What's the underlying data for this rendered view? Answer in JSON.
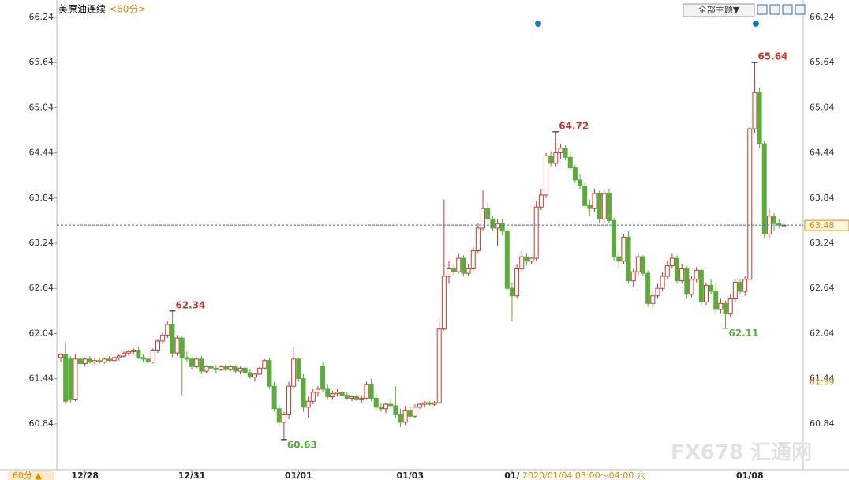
{
  "chart_data": {
    "type": "candlestick",
    "title": "美原油连续",
    "period": "<60分>",
    "button": "全部主题▼",
    "period_tab": "60分 ▲",
    "watermark": "FX678 汇通网",
    "crosshair_label": "2020/01/04 03:00～04:00 六",
    "ylim": [
      60.23,
      66.47
    ],
    "yticks": [
      66.24,
      65.64,
      65.04,
      64.44,
      63.84,
      63.24,
      62.64,
      62.04,
      61.44,
      60.84
    ],
    "up_color": "#c8382c",
    "down_color": "#5aad3a",
    "last": 63.48,
    "marker": 61.39,
    "annotations": [
      65.64,
      64.72,
      62.34,
      62.11,
      60.63
    ],
    "categories": [
      null,
      null,
      null,
      null,
      null,
      "12/28",
      null,
      null,
      null,
      null,
      null,
      null,
      null,
      null,
      null,
      null,
      null,
      null,
      null,
      null,
      null,
      null,
      null,
      null,
      null,
      null,
      null,
      "12/31",
      null,
      null,
      null,
      null,
      null,
      null,
      null,
      null,
      null,
      null,
      null,
      null,
      null,
      null,
      null,
      null,
      null,
      null,
      null,
      null,
      null,
      "01/01",
      null,
      null,
      null,
      null,
      null,
      null,
      null,
      null,
      null,
      null,
      null,
      null,
      null,
      null,
      null,
      null,
      null,
      null,
      null,
      null,
      null,
      null,
      "01/03",
      null,
      null,
      null,
      null,
      null,
      null,
      null,
      null,
      null,
      null,
      null,
      null,
      null,
      null,
      null,
      null,
      null,
      null,
      null,
      null,
      "01/",
      null,
      null,
      null,
      null,
      null,
      null,
      null,
      null,
      null,
      null,
      null,
      null,
      null,
      null,
      null,
      null,
      null,
      null,
      null,
      null,
      null,
      null,
      null,
      null,
      null,
      null,
      null,
      null,
      null,
      null,
      null,
      null,
      null,
      null,
      null,
      null,
      null,
      null,
      null,
      null,
      null,
      null,
      null,
      null,
      null,
      null,
      null,
      null,
      "01/08",
      null,
      null,
      null,
      null,
      null,
      null,
      null,
      null,
      null,
      null
    ],
    "candles": [
      [
        61.72,
        61.78,
        61.66,
        61.76
      ],
      [
        61.76,
        61.92,
        61.1,
        61.14
      ],
      [
        61.7,
        61.74,
        61.12,
        61.16
      ],
      [
        61.16,
        61.76,
        61.14,
        61.7
      ],
      [
        61.7,
        61.74,
        61.6,
        61.64
      ],
      [
        61.64,
        61.72,
        61.6,
        61.7
      ],
      [
        61.7,
        61.74,
        61.64,
        61.66
      ],
      [
        61.66,
        61.72,
        61.62,
        61.68
      ],
      [
        61.68,
        61.72,
        61.64,
        61.66
      ],
      [
        61.66,
        61.72,
        61.64,
        61.7
      ],
      [
        61.7,
        61.74,
        61.66,
        61.68
      ],
      [
        61.68,
        61.74,
        61.66,
        61.72
      ],
      [
        61.72,
        61.76,
        61.68,
        61.74
      ],
      [
        61.74,
        61.8,
        61.72,
        61.78
      ],
      [
        61.78,
        61.82,
        61.74,
        61.8
      ],
      [
        61.8,
        61.84,
        61.76,
        61.82
      ],
      [
        61.82,
        61.86,
        61.7,
        61.72
      ],
      [
        61.72,
        61.76,
        61.66,
        61.7
      ],
      [
        61.7,
        61.74,
        61.64,
        61.66
      ],
      [
        61.66,
        61.84,
        61.64,
        61.82
      ],
      [
        61.82,
        61.96,
        61.78,
        61.94
      ],
      [
        61.94,
        62.06,
        61.9,
        62.02
      ],
      [
        62.02,
        62.2,
        61.98,
        62.16
      ],
      [
        62.16,
        62.34,
        61.72,
        61.78
      ],
      [
        61.78,
        62.02,
        61.74,
        61.98
      ],
      [
        61.98,
        62.0,
        61.22,
        61.72
      ],
      [
        61.72,
        61.8,
        61.66,
        61.7
      ],
      [
        61.7,
        61.72,
        61.56,
        61.6
      ],
      [
        61.6,
        61.72,
        61.58,
        61.7
      ],
      [
        61.7,
        61.74,
        61.5,
        61.54
      ],
      [
        61.54,
        61.62,
        61.52,
        61.6
      ],
      [
        61.6,
        61.64,
        61.54,
        61.58
      ],
      [
        61.58,
        61.62,
        61.52,
        61.56
      ],
      [
        61.56,
        61.62,
        61.54,
        61.6
      ],
      [
        61.6,
        61.64,
        61.54,
        61.56
      ],
      [
        61.56,
        61.62,
        61.54,
        61.6
      ],
      [
        61.6,
        61.62,
        61.52,
        61.54
      ],
      [
        61.54,
        61.6,
        61.5,
        61.58
      ],
      [
        61.58,
        61.6,
        61.5,
        61.52
      ],
      [
        61.52,
        61.56,
        61.44,
        61.46
      ],
      [
        61.46,
        61.52,
        61.4,
        61.5
      ],
      [
        61.5,
        61.6,
        61.48,
        61.58
      ],
      [
        61.58,
        61.7,
        61.56,
        61.68
      ],
      [
        61.68,
        61.72,
        61.3,
        61.34
      ],
      [
        61.34,
        61.4,
        61.0,
        61.04
      ],
      [
        61.04,
        61.1,
        60.8,
        60.86
      ],
      [
        60.86,
        61.0,
        60.63,
        60.96
      ],
      [
        60.96,
        61.4,
        60.9,
        61.34
      ],
      [
        61.34,
        61.86,
        61.3,
        61.7
      ],
      [
        61.7,
        61.72,
        61.4,
        61.44
      ],
      [
        61.44,
        61.5,
        61.0,
        61.06
      ],
      [
        61.06,
        61.2,
        60.92,
        61.14
      ],
      [
        61.14,
        61.3,
        61.1,
        61.26
      ],
      [
        61.26,
        61.34,
        61.2,
        61.3
      ],
      [
        61.6,
        61.66,
        61.26,
        61.3
      ],
      [
        61.3,
        61.36,
        61.16,
        61.2
      ],
      [
        61.2,
        61.28,
        61.16,
        61.24
      ],
      [
        61.24,
        61.3,
        61.2,
        61.26
      ],
      [
        61.26,
        61.28,
        61.2,
        61.22
      ],
      [
        61.22,
        61.26,
        61.16,
        61.18
      ],
      [
        61.18,
        61.22,
        61.14,
        61.2
      ],
      [
        61.2,
        61.24,
        61.14,
        61.16
      ],
      [
        61.16,
        61.22,
        61.12,
        61.18
      ],
      [
        61.18,
        61.4,
        61.16,
        61.36
      ],
      [
        61.36,
        61.44,
        61.14,
        61.18
      ],
      [
        61.18,
        61.24,
        61.02,
        61.06
      ],
      [
        61.06,
        61.12,
        61.0,
        61.04
      ],
      [
        61.04,
        61.12,
        60.98,
        61.1
      ],
      [
        61.1,
        61.16,
        61.04,
        61.08
      ],
      [
        61.08,
        61.34,
        60.92,
        60.96
      ],
      [
        60.96,
        61.04,
        60.8,
        60.86
      ],
      [
        60.86,
        61.08,
        60.82,
        61.02
      ],
      [
        61.02,
        61.06,
        60.9,
        60.94
      ],
      [
        60.94,
        61.1,
        60.92,
        61.06
      ],
      [
        61.06,
        61.12,
        61.04,
        61.1
      ],
      [
        61.1,
        61.14,
        61.06,
        61.12
      ],
      [
        61.12,
        61.14,
        61.08,
        61.1
      ],
      [
        61.1,
        61.14,
        61.08,
        61.12
      ],
      [
        61.12,
        62.2,
        61.1,
        62.1
      ],
      [
        62.1,
        63.82,
        62.08,
        62.8
      ],
      [
        62.8,
        63.0,
        62.7,
        62.9
      ],
      [
        62.9,
        62.96,
        62.8,
        62.86
      ],
      [
        62.86,
        63.1,
        62.84,
        63.04
      ],
      [
        63.04,
        63.08,
        62.8,
        62.84
      ],
      [
        62.84,
        62.96,
        62.8,
        62.9
      ],
      [
        62.9,
        63.2,
        62.86,
        63.14
      ],
      [
        63.14,
        63.5,
        63.1,
        63.44
      ],
      [
        63.44,
        63.94,
        63.4,
        63.7
      ],
      [
        63.7,
        63.78,
        63.52,
        63.56
      ],
      [
        63.56,
        63.6,
        63.4,
        63.44
      ],
      [
        63.44,
        63.56,
        63.2,
        63.5
      ],
      [
        63.5,
        63.56,
        63.34,
        63.4
      ],
      [
        63.4,
        63.44,
        62.6,
        62.64
      ],
      [
        62.64,
        62.72,
        62.2,
        62.54
      ],
      [
        62.54,
        62.96,
        62.5,
        62.9
      ],
      [
        62.9,
        63.14,
        62.86,
        63.06
      ],
      [
        63.06,
        63.1,
        62.94,
        63.0
      ],
      [
        63.0,
        63.06,
        62.96,
        63.04
      ],
      [
        63.04,
        63.8,
        63.0,
        63.72
      ],
      [
        63.72,
        63.96,
        63.68,
        63.88
      ],
      [
        63.88,
        64.44,
        63.84,
        64.4
      ],
      [
        64.4,
        64.46,
        64.26,
        64.3
      ],
      [
        64.3,
        64.72,
        64.26,
        64.44
      ],
      [
        64.44,
        64.56,
        64.36,
        64.5
      ],
      [
        64.5,
        64.54,
        64.34,
        64.38
      ],
      [
        64.38,
        64.46,
        64.2,
        64.24
      ],
      [
        64.24,
        64.28,
        64.04,
        64.08
      ],
      [
        64.08,
        64.16,
        63.96,
        64.0
      ],
      [
        64.0,
        64.04,
        63.7,
        63.74
      ],
      [
        63.74,
        63.82,
        63.6,
        63.7
      ],
      [
        63.7,
        63.96,
        63.66,
        63.9
      ],
      [
        63.9,
        63.94,
        63.5,
        63.56
      ],
      [
        63.56,
        63.94,
        63.5,
        63.9
      ],
      [
        63.9,
        63.96,
        63.5,
        63.54
      ],
      [
        63.54,
        63.58,
        63.0,
        63.06
      ],
      [
        63.06,
        63.14,
        62.9,
        63.0
      ],
      [
        63.0,
        63.36,
        62.96,
        63.32
      ],
      [
        63.32,
        63.4,
        62.7,
        62.74
      ],
      [
        62.74,
        62.9,
        62.66,
        62.86
      ],
      [
        62.86,
        63.1,
        62.8,
        63.06
      ],
      [
        63.06,
        63.08,
        62.8,
        62.84
      ],
      [
        62.84,
        62.88,
        62.4,
        62.44
      ],
      [
        62.44,
        62.6,
        62.36,
        62.54
      ],
      [
        62.54,
        62.7,
        62.5,
        62.64
      ],
      [
        62.64,
        62.86,
        62.6,
        62.8
      ],
      [
        62.8,
        63.0,
        62.76,
        62.94
      ],
      [
        62.94,
        63.1,
        62.9,
        63.04
      ],
      [
        63.04,
        63.08,
        62.7,
        62.74
      ],
      [
        62.74,
        62.96,
        62.7,
        62.9
      ],
      [
        62.9,
        62.94,
        62.5,
        62.56
      ],
      [
        62.56,
        62.8,
        62.52,
        62.76
      ],
      [
        62.76,
        62.92,
        62.72,
        62.88
      ],
      [
        62.88,
        62.9,
        62.4,
        62.46
      ],
      [
        62.46,
        62.72,
        62.42,
        62.68
      ],
      [
        62.68,
        62.76,
        62.56,
        62.6
      ],
      [
        62.6,
        62.7,
        62.3,
        62.36
      ],
      [
        62.36,
        62.5,
        62.3,
        62.44
      ],
      [
        62.44,
        62.48,
        62.11,
        62.3
      ],
      [
        62.3,
        62.56,
        62.26,
        62.5
      ],
      [
        62.5,
        62.76,
        62.46,
        62.72
      ],
      [
        62.72,
        62.76,
        62.56,
        62.6
      ],
      [
        62.6,
        62.8,
        62.54,
        62.76
      ],
      [
        62.76,
        64.8,
        62.74,
        64.76
      ],
      [
        64.76,
        65.64,
        64.7,
        65.24
      ],
      [
        65.24,
        65.3,
        64.5,
        64.56
      ],
      [
        64.56,
        64.6,
        63.3,
        63.36
      ],
      [
        63.36,
        63.7,
        63.3,
        63.6
      ],
      [
        63.6,
        63.64,
        63.4,
        63.5
      ],
      [
        63.5,
        63.56,
        63.44,
        63.48
      ],
      [
        63.48,
        63.52,
        63.44,
        63.48
      ]
    ]
  }
}
